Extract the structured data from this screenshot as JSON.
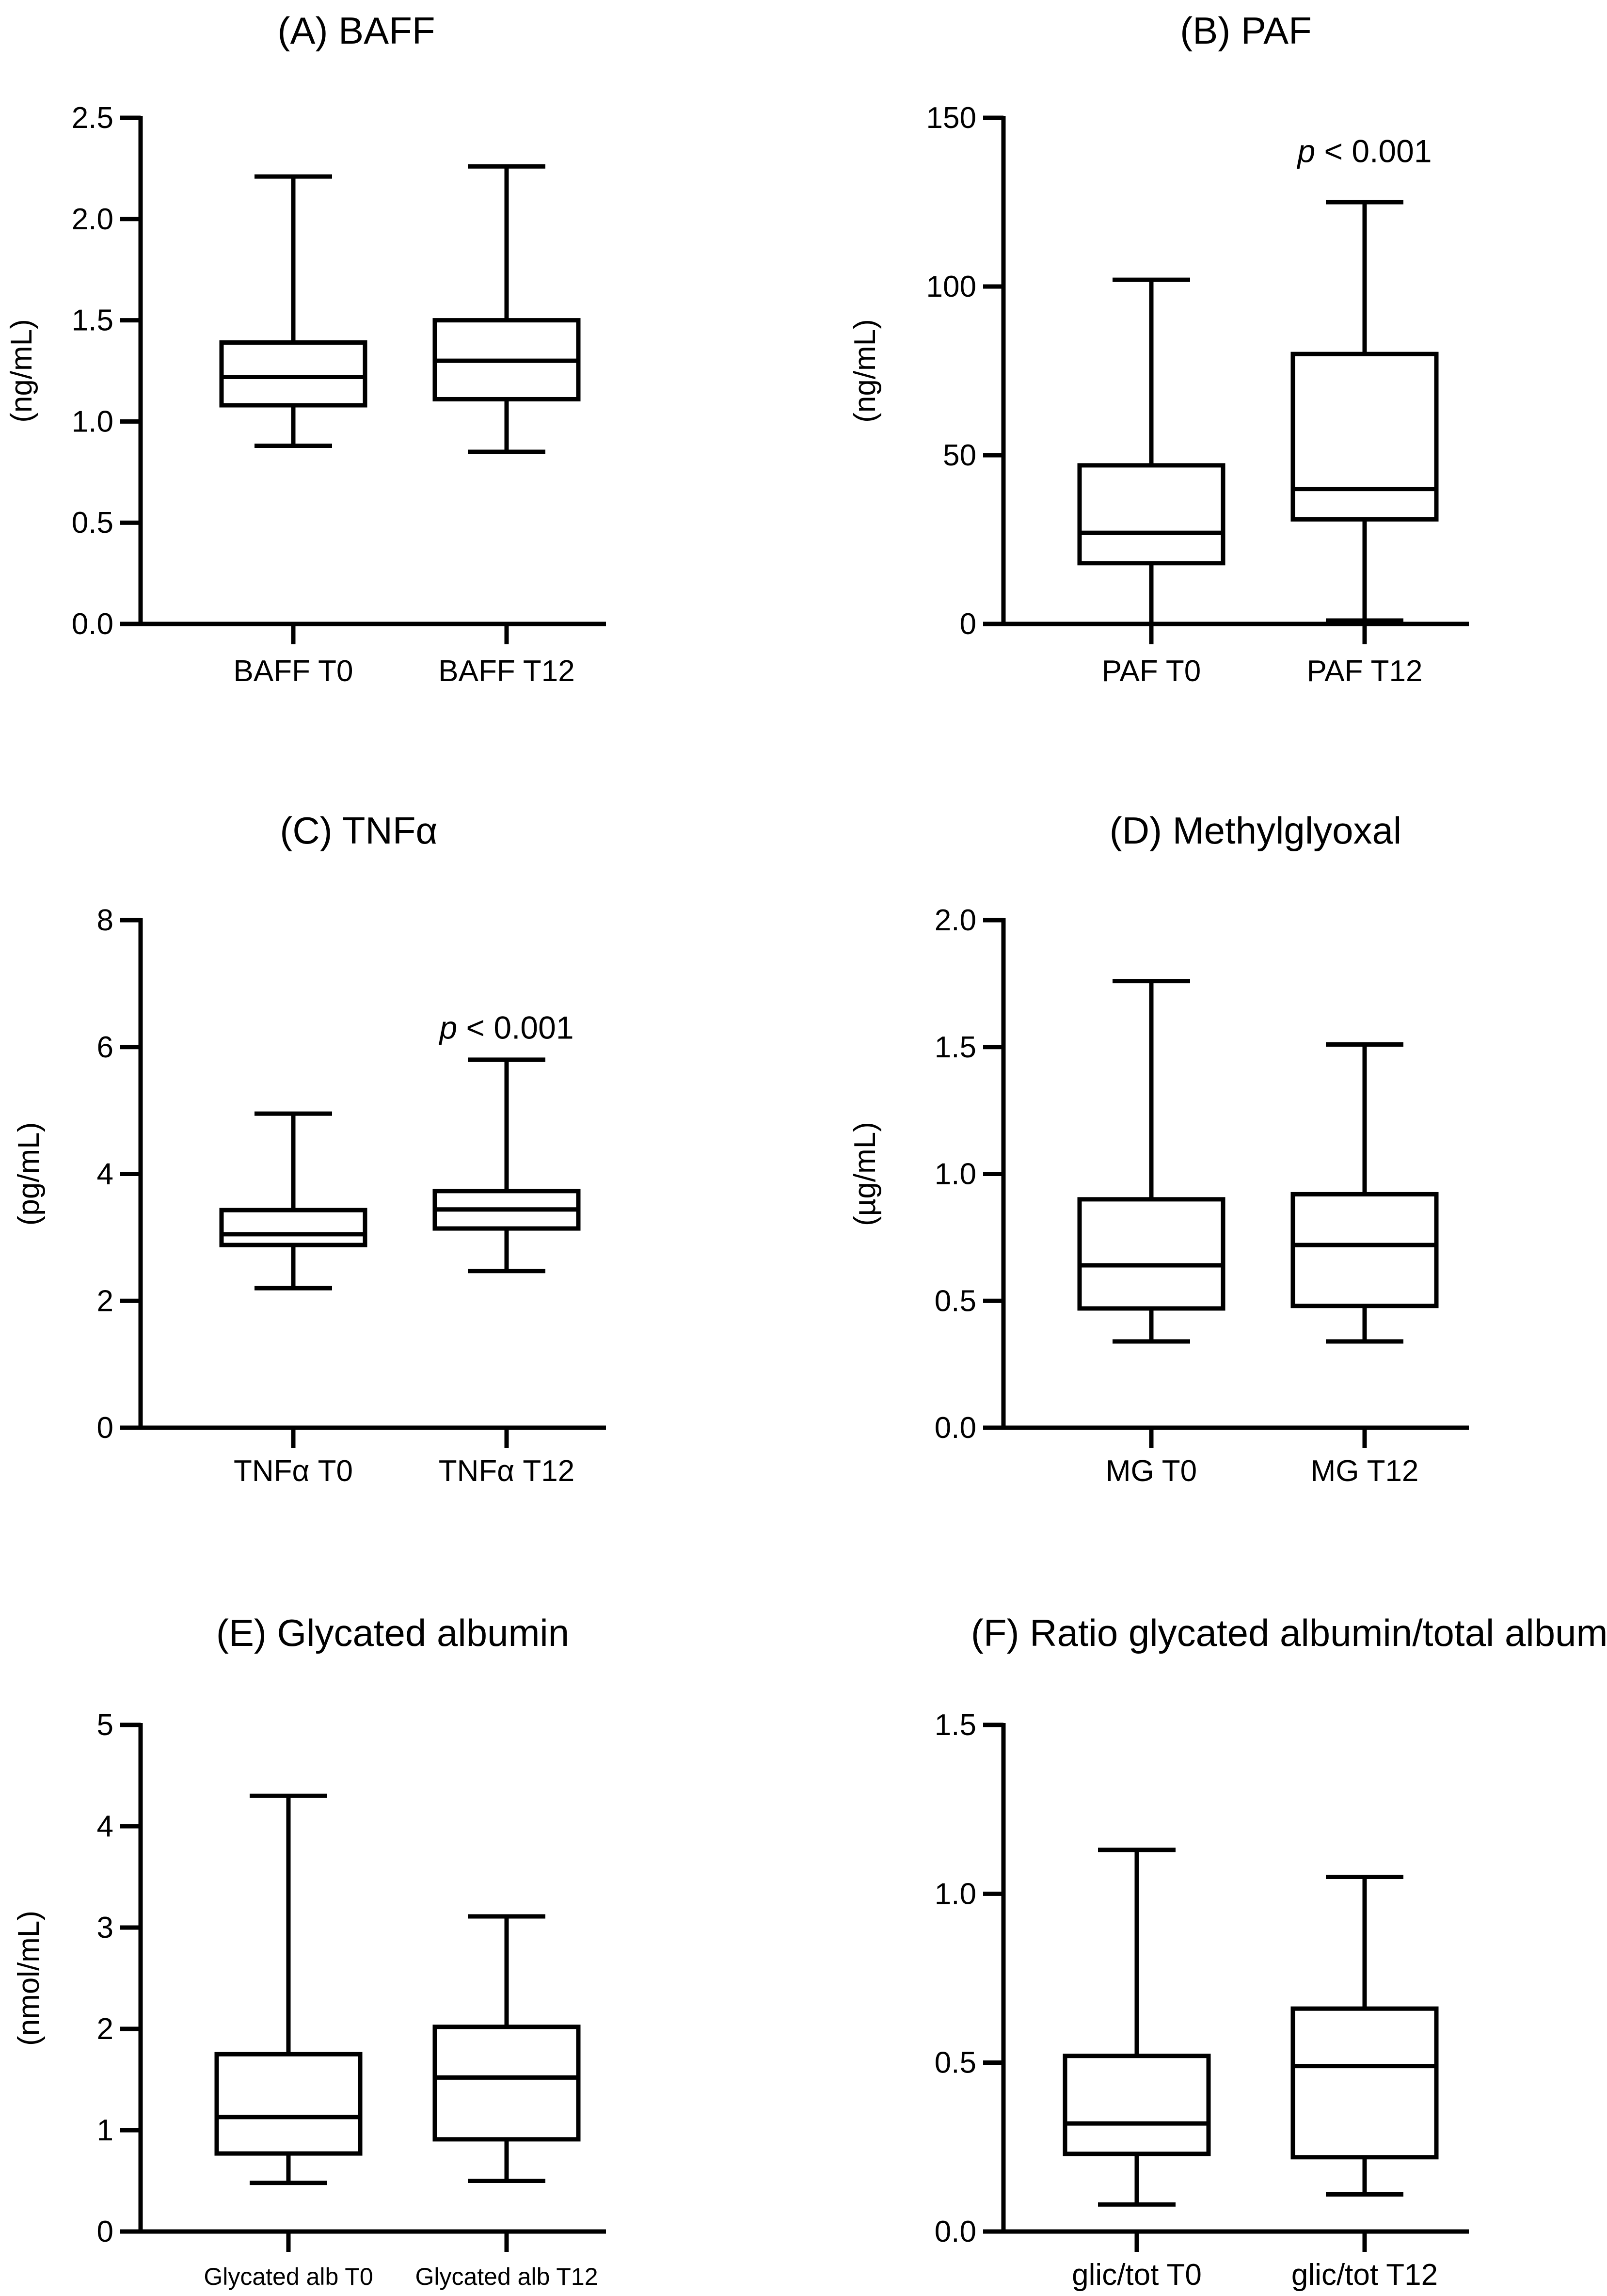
{
  "chart_data": [
    {
      "type": "box",
      "title": "(A) BAFF",
      "ylabel": "(ng/mL)",
      "ylim": [
        0,
        2.5
      ],
      "yticks": [
        "0.0",
        "0.5",
        "1.0",
        "1.5",
        "2.0",
        "2.5"
      ],
      "ytick_values": [
        0,
        0.5,
        1.0,
        1.5,
        2.0,
        2.5
      ],
      "categories": [
        "BAFF T0",
        "BAFF T12"
      ],
      "boxes": [
        {
          "min": 0.88,
          "q1": 1.08,
          "median": 1.22,
          "q3": 1.39,
          "max": 2.21
        },
        {
          "min": 0.85,
          "q1": 1.11,
          "median": 1.3,
          "q3": 1.5,
          "max": 2.26
        }
      ],
      "annotation": ""
    },
    {
      "type": "box",
      "title": "(B) PAF",
      "ylabel": "(ng/mL)",
      "ylim": [
        0,
        150
      ],
      "yticks": [
        "0",
        "50",
        "100",
        "150"
      ],
      "ytick_values": [
        0,
        50,
        100,
        150
      ],
      "categories": [
        "PAF T0",
        "PAF T12"
      ],
      "boxes": [
        {
          "min": 0,
          "q1": 18,
          "median": 27,
          "q3": 47,
          "max": 102
        },
        {
          "min": 1,
          "q1": 31,
          "median": 40,
          "q3": 80,
          "max": 125
        }
      ],
      "annotation": "p < 0.001",
      "annotation_p": "p",
      "annotation_rest": " < 0.001",
      "annotation_value": 140
    },
    {
      "type": "box",
      "title": "(C) TNFα",
      "ylabel": "(pg/mL)",
      "ylim": [
        0,
        8
      ],
      "yticks": [
        "0",
        "2",
        "4",
        "6",
        "8"
      ],
      "ytick_values": [
        0,
        2,
        4,
        6,
        8
      ],
      "categories": [
        "TNFα T0",
        "TNFα T12"
      ],
      "boxes": [
        {
          "min": 2.2,
          "q1": 2.88,
          "median": 3.05,
          "q3": 3.43,
          "max": 4.95
        },
        {
          "min": 2.47,
          "q1": 3.14,
          "median": 3.44,
          "q3": 3.73,
          "max": 5.8
        }
      ],
      "annotation": "p < 0.001",
      "annotation_p": "p",
      "annotation_rest": " < 0.001",
      "annotation_value": 6.3
    },
    {
      "type": "box",
      "title": "(D) Methylglyoxal",
      "ylabel": "(µg/mL)",
      "ylim": [
        0,
        2.0
      ],
      "yticks": [
        "0.0",
        "0.5",
        "1.0",
        "1.5",
        "2.0"
      ],
      "ytick_values": [
        0,
        0.5,
        1.0,
        1.5,
        2.0
      ],
      "categories": [
        "MG T0",
        "MG T12"
      ],
      "boxes": [
        {
          "min": 0.34,
          "q1": 0.47,
          "median": 0.64,
          "q3": 0.9,
          "max": 1.76
        },
        {
          "min": 0.34,
          "q1": 0.48,
          "median": 0.72,
          "q3": 0.92,
          "max": 1.51
        }
      ],
      "annotation": ""
    },
    {
      "type": "box",
      "title": "(E) Glycated albumin",
      "ylabel": "(nmol/mL)",
      "ylim": [
        0,
        5
      ],
      "yticks": [
        "0",
        "1",
        "2",
        "3",
        "4",
        "5"
      ],
      "ytick_values": [
        0,
        1,
        2,
        3,
        4,
        5
      ],
      "categories": [
        "Glycated alb T0",
        "Glycated alb T12"
      ],
      "small_categories": true,
      "boxes": [
        {
          "min": 0.48,
          "q1": 0.77,
          "median": 1.13,
          "q3": 1.75,
          "max": 4.3
        },
        {
          "min": 0.5,
          "q1": 0.91,
          "median": 1.52,
          "q3": 2.02,
          "max": 3.11
        }
      ],
      "annotation": ""
    },
    {
      "type": "box",
      "title": "(F) Ratio glycated albumin/total albumin",
      "ylabel": "",
      "ylim": [
        0,
        1.5
      ],
      "yticks": [
        "0.0",
        "0.5",
        "1.0",
        "1.5"
      ],
      "ytick_values": [
        0,
        0.5,
        1.0,
        1.5
      ],
      "categories": [
        "glic/tot T0",
        "glic/tot T12"
      ],
      "boxes": [
        {
          "min": 0.08,
          "q1": 0.23,
          "median": 0.32,
          "q3": 0.52,
          "max": 1.13
        },
        {
          "min": 0.11,
          "q1": 0.22,
          "median": 0.49,
          "q3": 0.66,
          "max": 1.05
        }
      ],
      "annotation": ""
    }
  ]
}
